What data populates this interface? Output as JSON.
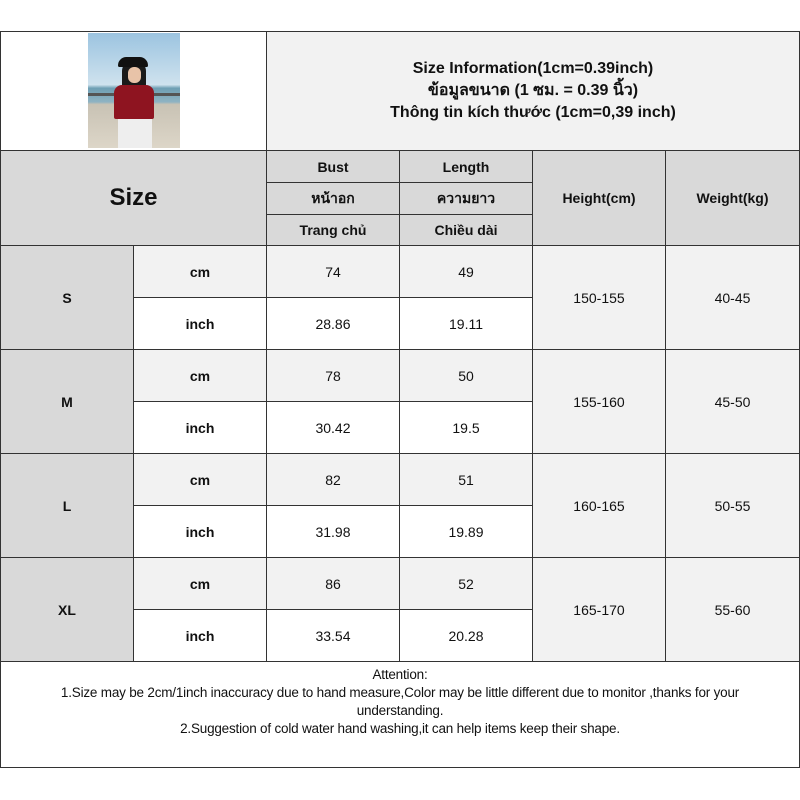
{
  "header": {
    "title_lines": [
      "Size Information(1cm=0.39inch)",
      "ข้อมูลขนาด (1 ซม. = 0.39 นิ้ว)",
      "Thông tin kích thước (1cm=0,39 inch)"
    ],
    "photo": "model-wearing-red-tshirt"
  },
  "columns": {
    "size": "Size",
    "bust": [
      "Bust",
      "หน้าอก",
      "Trang chủ"
    ],
    "length": [
      "Length",
      "ความยาว",
      "Chiều dài"
    ],
    "height": "Height(cm)",
    "weight": "Weight(kg)"
  },
  "rows": [
    {
      "size": "S",
      "cm_label": "cm",
      "inch_label": "inch",
      "bust_cm": "74",
      "length_cm": "49",
      "bust_inch": "28.86",
      "length_inch": "19.11",
      "height": "150-155",
      "weight": "40-45"
    },
    {
      "size": "M",
      "cm_label": "cm",
      "inch_label": "inch",
      "bust_cm": "78",
      "length_cm": "50",
      "bust_inch": "30.42",
      "length_inch": "19.5",
      "height": "155-160",
      "weight": "45-50"
    },
    {
      "size": "L",
      "cm_label": "cm",
      "inch_label": "inch",
      "bust_cm": "82",
      "length_cm": "51",
      "bust_inch": "31.98",
      "length_inch": "19.89",
      "height": "160-165",
      "weight": "50-55"
    },
    {
      "size": "XL",
      "cm_label": "cm",
      "inch_label": "inch",
      "bust_cm": "86",
      "length_cm": "52",
      "bust_inch": "33.54",
      "length_inch": "20.28",
      "height": "165-170",
      "weight": "55-60"
    }
  ],
  "attention": {
    "title": "Attention:",
    "line1": "1.Size may be 2cm/1inch inaccuracy due to hand measure,Color may be little different due to monitor ,thanks for your understanding.",
    "line2": "2.Suggestion of cold water hand washing,it can help items keep their shape."
  }
}
